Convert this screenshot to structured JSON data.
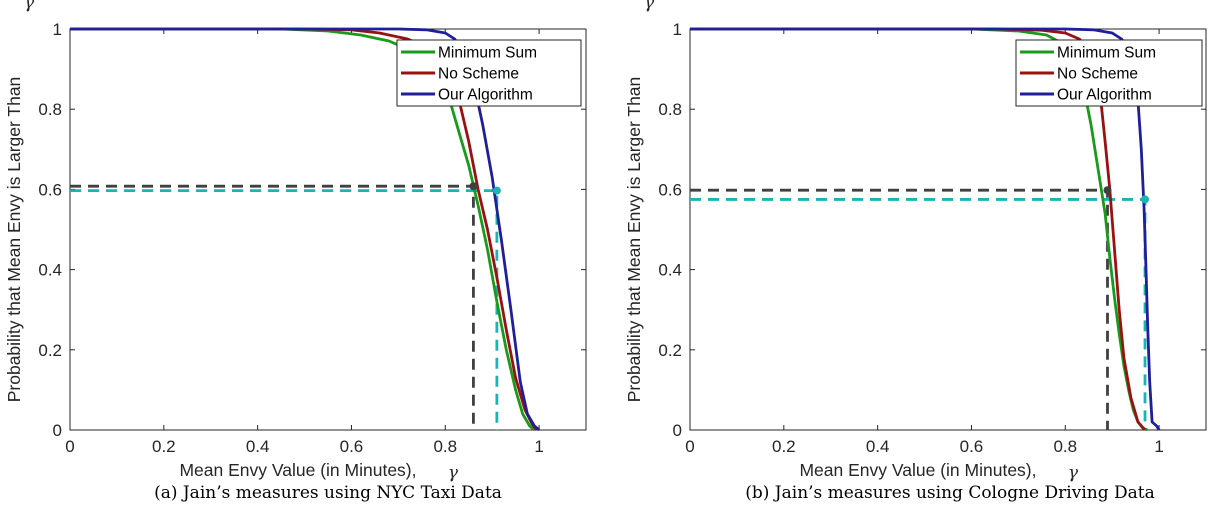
{
  "chart_data": [
    {
      "type": "line",
      "xlabel": "Mean Envy Value (in Minutes),",
      "xlabel_symbol": "γ",
      "ylabel": "Probability that Mean Envy is Larger Than",
      "ylabel_symbol": "γ",
      "caption": "(a) Jain’s measures using NYC Taxi Data",
      "xlim": [
        0,
        1.1
      ],
      "ylim": [
        0,
        1
      ],
      "xticks": [
        "0",
        "0.2",
        "0.4",
        "0.6",
        "0.8",
        "1"
      ],
      "yticks": [
        "0",
        "0.2",
        "0.4",
        "0.6",
        "0.8",
        "1"
      ],
      "grid": false,
      "legend_position": "top-right",
      "series": [
        {
          "name": "Minimum Sum",
          "color": "#1a9a1a",
          "x": [
            0,
            0.45,
            0.55,
            0.62,
            0.68,
            0.72,
            0.76,
            0.79,
            0.81,
            0.83,
            0.85,
            0.87,
            0.89,
            0.91,
            0.93,
            0.95,
            0.965,
            0.98,
            0.99
          ],
          "y": [
            1,
            1,
            0.995,
            0.985,
            0.97,
            0.95,
            0.92,
            0.88,
            0.82,
            0.74,
            0.66,
            0.56,
            0.45,
            0.32,
            0.2,
            0.1,
            0.04,
            0.01,
            0
          ]
        },
        {
          "name": "No Scheme",
          "color": "#9b1010",
          "x": [
            0,
            0.5,
            0.6,
            0.66,
            0.72,
            0.76,
            0.79,
            0.81,
            0.83,
            0.85,
            0.87,
            0.89,
            0.91,
            0.93,
            0.95,
            0.97,
            0.985,
            0.995
          ],
          "y": [
            1,
            1,
            0.998,
            0.99,
            0.975,
            0.955,
            0.93,
            0.89,
            0.82,
            0.72,
            0.6,
            0.5,
            0.38,
            0.25,
            0.13,
            0.05,
            0.015,
            0
          ]
        },
        {
          "name": "Our Algorithm",
          "color": "#1f1f9a",
          "x": [
            0,
            0.6,
            0.7,
            0.76,
            0.8,
            0.82,
            0.84,
            0.86,
            0.88,
            0.9,
            0.92,
            0.94,
            0.96,
            0.975,
            0.99,
            1.0
          ],
          "y": [
            1,
            1,
            1,
            0.998,
            0.99,
            0.975,
            0.94,
            0.87,
            0.76,
            0.63,
            0.47,
            0.3,
            0.12,
            0.04,
            0.01,
            0
          ]
        }
      ],
      "annotations": [
        {
          "type": "dashed-crosshair",
          "x": 0.86,
          "y": 0.608,
          "color": "#404040"
        },
        {
          "type": "dashed-crosshair",
          "x": 0.91,
          "y": 0.597,
          "color": "#1bb3b3"
        }
      ]
    },
    {
      "type": "line",
      "xlabel": "Mean Envy Value (in Minutes),",
      "xlabel_symbol": "γ",
      "ylabel": "Probability that Mean Envy is Larger Than",
      "ylabel_symbol": "γ",
      "caption": "(b) Jain’s measures using Cologne Driving Data",
      "xlim": [
        0,
        1.1
      ],
      "ylim": [
        0,
        1
      ],
      "xticks": [
        "0",
        "0.2",
        "0.4",
        "0.6",
        "0.8",
        "1"
      ],
      "yticks": [
        "0",
        "0.2",
        "0.4",
        "0.6",
        "0.8",
        "1"
      ],
      "grid": false,
      "legend_position": "top-right",
      "series": [
        {
          "name": "Minimum Sum",
          "color": "#1a9a1a",
          "x": [
            0,
            0.6,
            0.7,
            0.76,
            0.8,
            0.82,
            0.84,
            0.855,
            0.87,
            0.885,
            0.895,
            0.905,
            0.915,
            0.925,
            0.935,
            0.945,
            0.955,
            0.965,
            0.975
          ],
          "y": [
            1,
            1,
            0.995,
            0.985,
            0.96,
            0.92,
            0.85,
            0.76,
            0.65,
            0.54,
            0.43,
            0.33,
            0.24,
            0.16,
            0.1,
            0.05,
            0.02,
            0.005,
            0
          ]
        },
        {
          "name": "No Scheme",
          "color": "#9b1010",
          "x": [
            0,
            0.65,
            0.75,
            0.8,
            0.83,
            0.85,
            0.865,
            0.875,
            0.885,
            0.895,
            0.905,
            0.915,
            0.925,
            0.94,
            0.955,
            0.97
          ],
          "y": [
            1,
            1,
            0.997,
            0.99,
            0.975,
            0.95,
            0.9,
            0.83,
            0.72,
            0.6,
            0.45,
            0.3,
            0.18,
            0.08,
            0.02,
            0
          ]
        },
        {
          "name": "Our Algorithm",
          "color": "#1f1f9a",
          "x": [
            0,
            0.8,
            0.86,
            0.9,
            0.92,
            0.935,
            0.945,
            0.955,
            0.962,
            0.968,
            0.972,
            0.976,
            0.98,
            0.985,
            0.995,
            1.0
          ],
          "y": [
            1,
            1,
            0.998,
            0.99,
            0.975,
            0.95,
            0.9,
            0.82,
            0.7,
            0.55,
            0.4,
            0.25,
            0.12,
            0.02,
            0.01,
            0
          ]
        }
      ],
      "annotations": [
        {
          "type": "dashed-crosshair",
          "x": 0.89,
          "y": 0.598,
          "color": "#404040"
        },
        {
          "type": "dashed-crosshair",
          "x": 0.97,
          "y": 0.575,
          "color": "#1bb3b3"
        }
      ]
    }
  ]
}
